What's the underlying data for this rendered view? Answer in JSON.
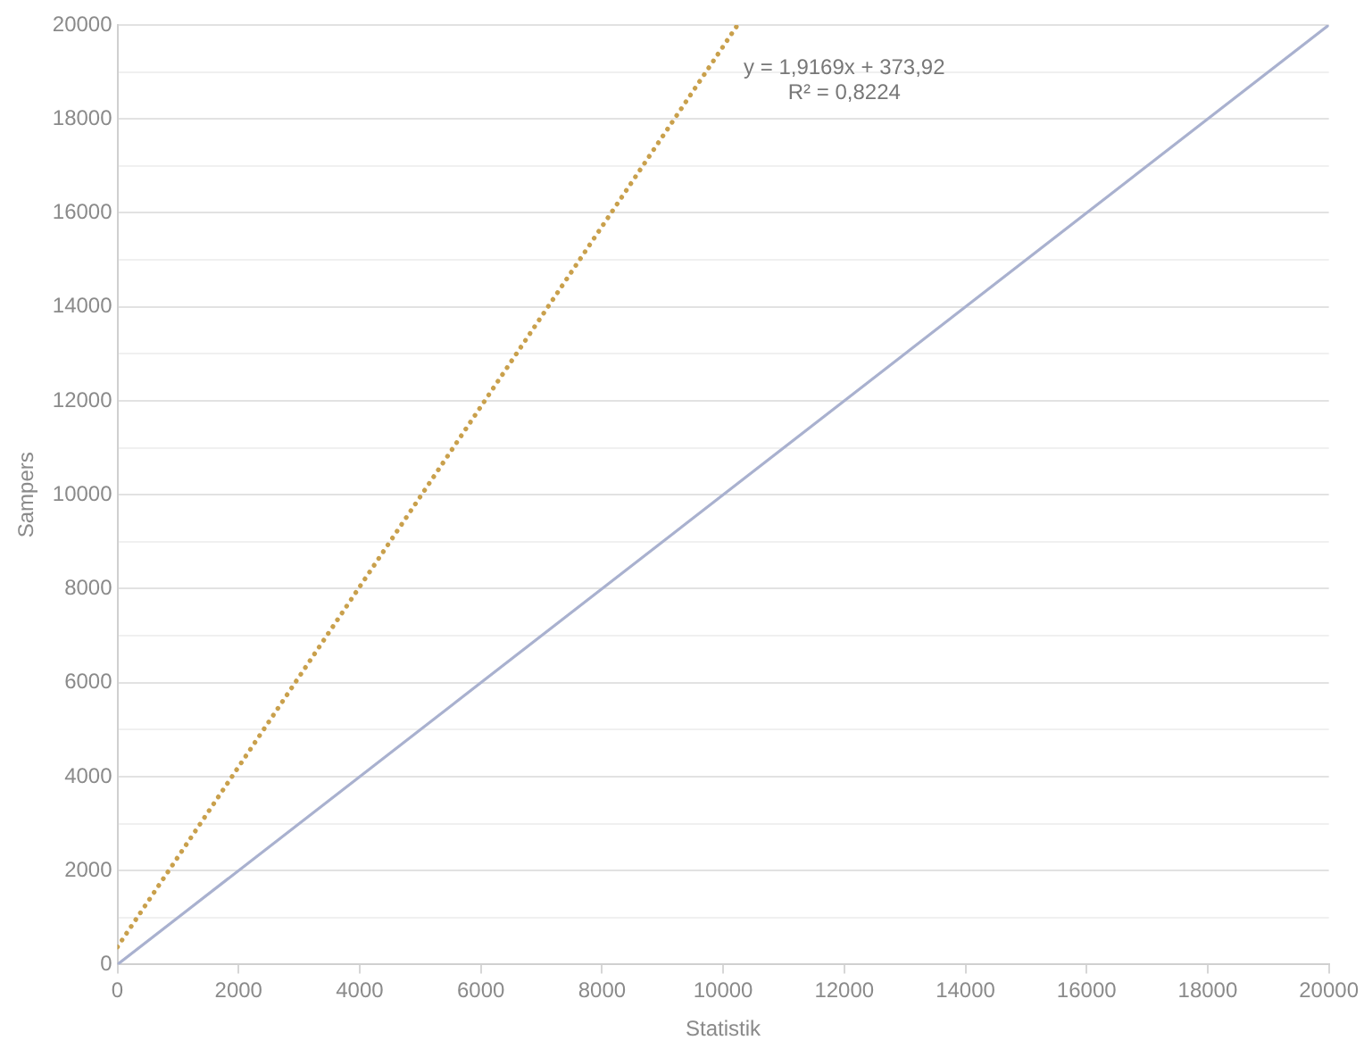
{
  "chart_data": {
    "type": "line",
    "xlabel": "Statistik",
    "ylabel": "Sampers",
    "series": [
      {
        "color": "#c9a04c",
        "line_style": "dotted",
        "x": [
          0,
          10238
        ],
        "values": [
          374,
          20000
        ]
      },
      {
        "color": "#a9b1cf",
        "line_style": "solid",
        "x": [
          0,
          20000
        ],
        "values": [
          0,
          20000
        ]
      }
    ],
    "xlim": [
      0,
      20000
    ],
    "ylim": [
      0,
      20000
    ],
    "xticks": [
      0,
      2000,
      4000,
      6000,
      8000,
      10000,
      12000,
      14000,
      16000,
      18000,
      20000
    ],
    "yticks": [
      0,
      {
        "value": 1000,
        "label": null
      },
      2000,
      {
        "value": 3000,
        "label": null
      },
      4000,
      {
        "value": 5000,
        "label": null
      },
      6000,
      {
        "value": 7000,
        "label": null
      },
      8000,
      {
        "value": 9000,
        "label": null
      },
      10000,
      {
        "value": 11000,
        "label": null
      },
      12000,
      {
        "value": 13000,
        "label": null
      },
      14000,
      {
        "value": 15000,
        "label": null
      },
      16000,
      {
        "value": 17000,
        "label": null
      },
      18000,
      {
        "value": 19000,
        "label": null
      },
      20000
    ],
    "grid": "y",
    "legend": false,
    "marker": "none",
    "annotations": [
      "y = 1,9169x + 373,92",
      "R² = 0,8224"
    ]
  }
}
